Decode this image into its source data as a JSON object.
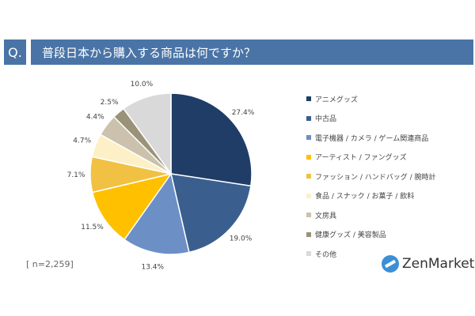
{
  "header": {
    "q_label": "Q.",
    "title": "普段日本から購入する商品は何ですか？"
  },
  "sample": "[ n=2,259]",
  "logo": "ZenMarket",
  "chart_data": {
    "type": "pie",
    "title": "普段日本から購入する商品は何ですか？",
    "start": "top",
    "direction": "clockwise",
    "categories": [
      "アニメグッズ",
      "中古品",
      "電子機器 / カメラ / ゲーム関連商品",
      "アーティスト / ファングッズ",
      "ファッション / ハンドバッグ / 腕時計",
      "食品 / スナック / お菓子 / 飲料",
      "文房具",
      "健康グッズ / 美容製品",
      "その他"
    ],
    "values": [
      27.4,
      19.0,
      13.4,
      11.5,
      7.1,
      4.7,
      4.4,
      2.5,
      10.0
    ],
    "labels": [
      "27.4%",
      "19.0%",
      "13.4%",
      "11.5%",
      "7.1%",
      "4.7%",
      "4.4%",
      "2.5%",
      "10.0%"
    ],
    "colors": [
      "#1f3d66",
      "#3a5f8f",
      "#6c8fc6",
      "#ffc000",
      "#f0c143",
      "#fdf0c6",
      "#cbc1ad",
      "#9a9279",
      "#d9d9d9"
    ],
    "legend_position": "right"
  }
}
